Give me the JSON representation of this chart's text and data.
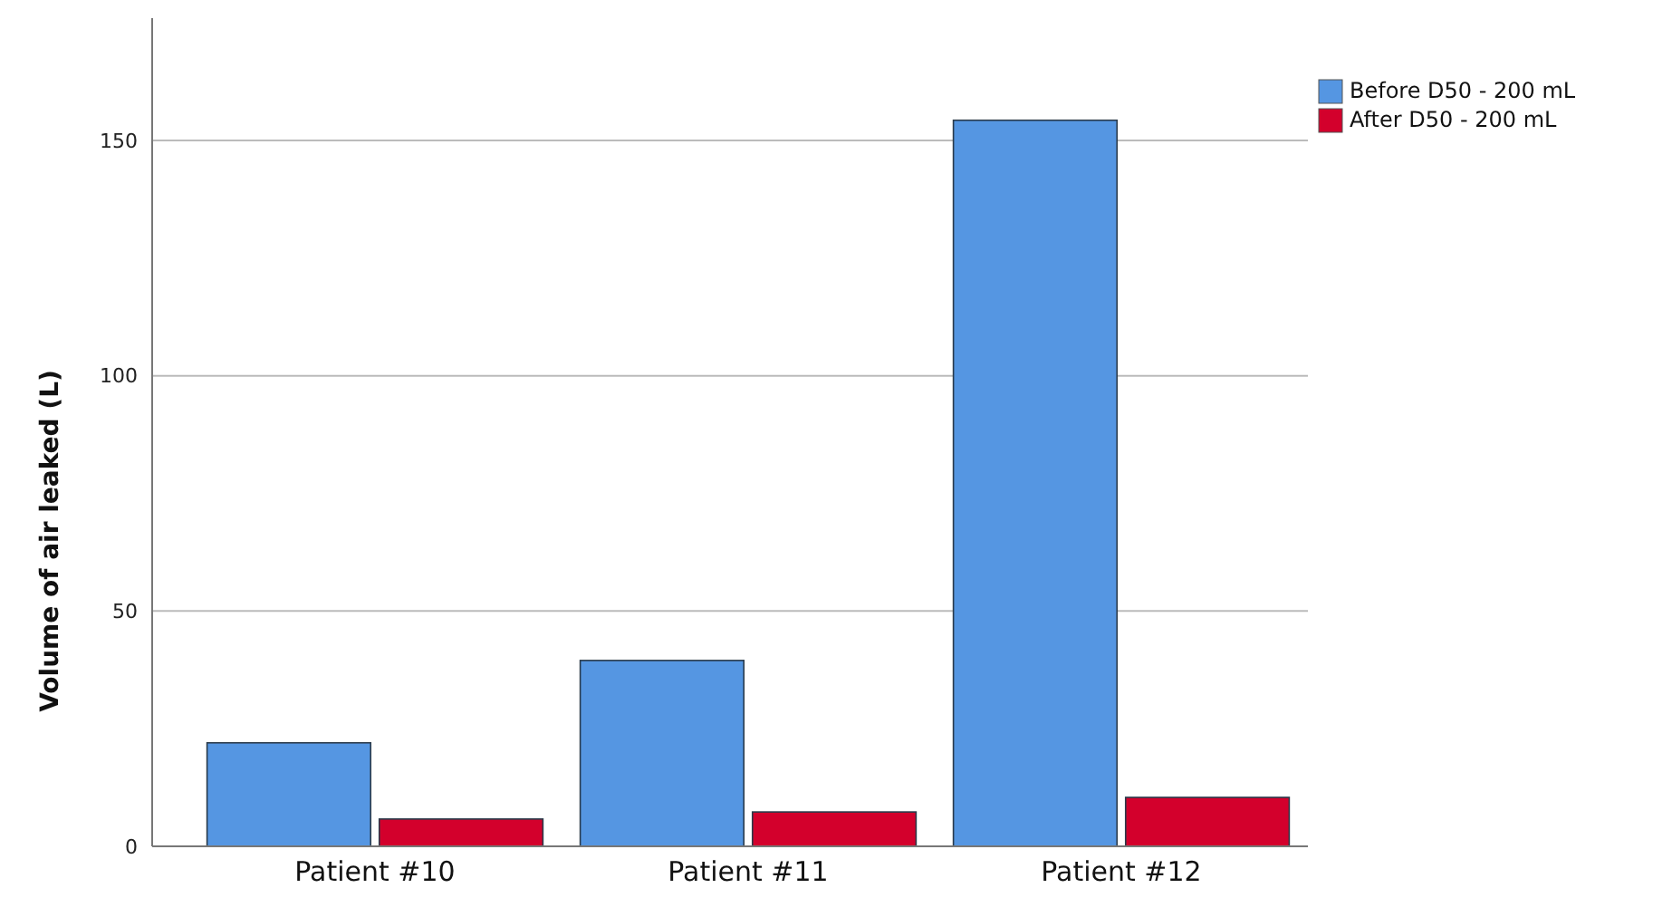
{
  "chart_data": {
    "type": "bar",
    "ylabel": "Volume of air leaked (L)",
    "categories": [
      "Patient #10",
      "Patient #11",
      "Patient #12"
    ],
    "series": [
      {
        "name": "Before D50 - 200 mL",
        "color": "#5596e2",
        "values": [
          22,
          39.5,
          154.3
        ]
      },
      {
        "name": "After D50 - 200 mL",
        "color": "#d3002c",
        "values": [
          5.8,
          7.3,
          10.4
        ]
      }
    ],
    "ylim": [
      0,
      176
    ],
    "yticks": [
      0,
      50,
      100,
      150
    ],
    "grid": "y",
    "legend": "right"
  }
}
